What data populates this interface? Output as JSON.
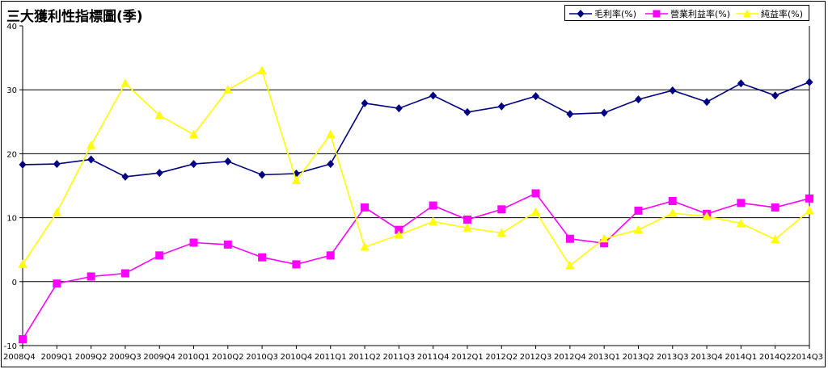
{
  "chart_data": {
    "type": "line",
    "title": "三大獲利性指標圖(季)",
    "categories": [
      "2008Q4",
      "2009Q1",
      "2009Q2",
      "2009Q3",
      "2009Q4",
      "2010Q1",
      "2010Q2",
      "2010Q3",
      "2010Q4",
      "2011Q1",
      "2011Q2",
      "2011Q3",
      "2011Q4",
      "2012Q1",
      "2012Q2",
      "2012Q3",
      "2012Q4",
      "2013Q1",
      "2013Q2",
      "2013Q3",
      "2013Q4",
      "2014Q1",
      "2014Q2",
      "2014Q3"
    ],
    "ylim": [
      -10,
      40
    ],
    "yticks": [
      -10,
      0,
      10,
      20,
      30,
      40
    ],
    "gridlines": [
      0,
      10,
      20,
      30
    ],
    "legend_position": "top-right",
    "series": [
      {
        "name": "毛利率(%)",
        "color": "#000080",
        "marker": "diamond",
        "values": [
          18.3,
          18.4,
          19.1,
          16.4,
          17.0,
          18.4,
          18.8,
          16.7,
          16.9,
          18.4,
          27.9,
          27.1,
          29.1,
          26.5,
          27.4,
          29.0,
          26.2,
          26.4,
          28.5,
          29.9,
          28.1,
          31.0,
          29.1,
          31.2
        ]
      },
      {
        "name": "營業利益率(%)",
        "color": "#ff00ff",
        "marker": "square",
        "values": [
          -9.0,
          -0.3,
          0.8,
          1.3,
          4.1,
          6.1,
          5.8,
          3.8,
          2.7,
          4.1,
          11.6,
          8.1,
          11.9,
          9.7,
          11.3,
          13.8,
          6.7,
          6.0,
          11.1,
          12.6,
          10.6,
          12.3,
          11.6,
          13.0
        ]
      },
      {
        "name": "純益率(%)",
        "color": "#ffff00",
        "marker": "triangle",
        "values": [
          2.7,
          10.8,
          21.3,
          31.0,
          26.0,
          23.0,
          30.0,
          33.0,
          15.8,
          23.0,
          5.4,
          7.3,
          9.4,
          8.4,
          7.6,
          10.9,
          2.5,
          6.7,
          8.1,
          10.7,
          10.2,
          9.1,
          6.6,
          11.1
        ]
      }
    ]
  }
}
